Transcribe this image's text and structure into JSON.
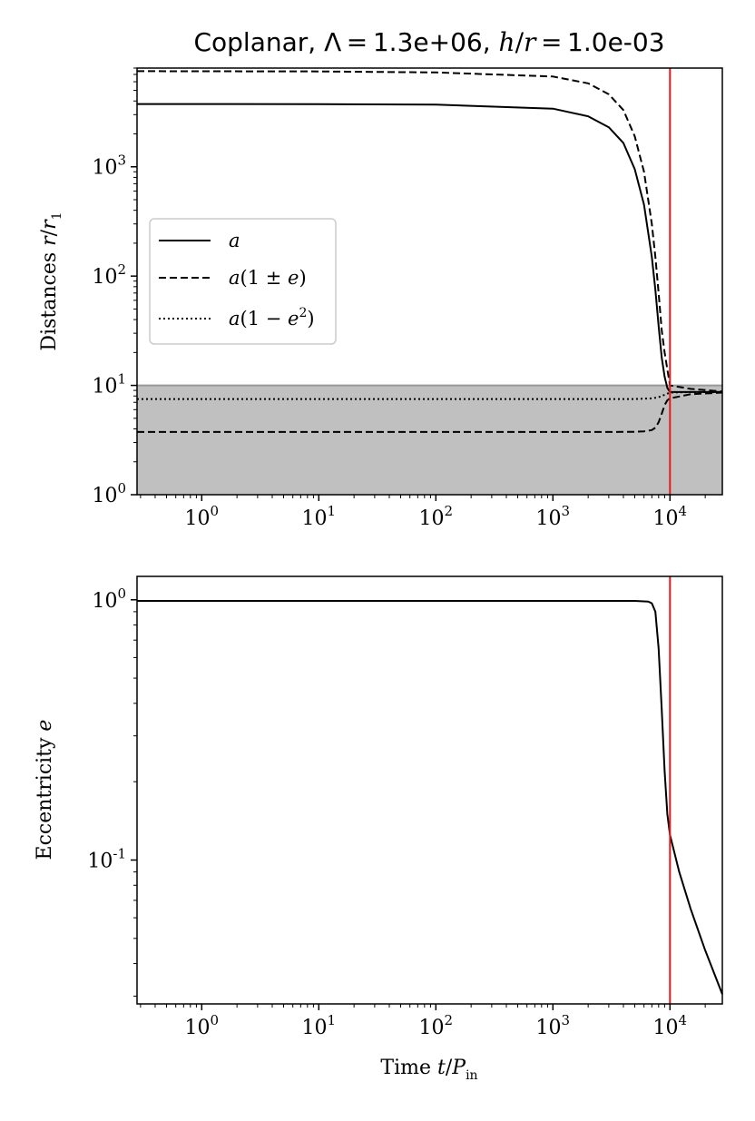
{
  "figure": {
    "title": {
      "prefix": "Coplanar, Λ = 1.3e+06, ",
      "h": "h",
      "slash": "/",
      "r": "r",
      "suffix": " = 1.0e-03"
    },
    "xlabel": {
      "text": "Time ",
      "var": "t",
      "slash": "/",
      "P": "P",
      "sub": "in"
    },
    "top_ylabel": {
      "text": "Distances ",
      "var": "r",
      "slash": "/",
      "r": "r",
      "sub": "1"
    },
    "bottom_ylabel": {
      "text": "Eccentricity ",
      "var": "e"
    },
    "colors": {
      "line": "#000000",
      "marker": "#e41a1c",
      "shade": "#c0c0c0",
      "legend_edge": "#cccccc"
    }
  },
  "chart_data": [
    {
      "type": "line",
      "panel": "top",
      "xscale": "log",
      "yscale": "log",
      "xlim": [
        0.28,
        28000
      ],
      "ylim": [
        1,
        8000
      ],
      "xticks": [
        {
          "value": 1,
          "base": "10",
          "exp": "0"
        },
        {
          "value": 10,
          "base": "10",
          "exp": "1"
        },
        {
          "value": 100,
          "base": "10",
          "exp": "2"
        },
        {
          "value": 1000,
          "base": "10",
          "exp": "3"
        },
        {
          "value": 10000,
          "base": "10",
          "exp": "4"
        }
      ],
      "yticks": [
        {
          "value": 1,
          "base": "10",
          "exp": "0"
        },
        {
          "value": 10,
          "base": "10",
          "exp": "1"
        },
        {
          "value": 100,
          "base": "10",
          "exp": "2"
        },
        {
          "value": 1000,
          "base": "10",
          "exp": "3"
        }
      ],
      "shaded_region_y": [
        1,
        10
      ],
      "vline_x": 10000,
      "legend": {
        "position": "center-left"
      },
      "series": [
        {
          "name": "a",
          "style": "solid",
          "x": [
            0.28,
            1,
            10,
            100,
            1000,
            2000,
            3000,
            4000,
            5000,
            6000,
            7000,
            7500,
            8000,
            8500,
            9000,
            9500,
            10000,
            15000,
            28000
          ],
          "y": [
            3750,
            3750,
            3745,
            3700,
            3400,
            2900,
            2300,
            1650,
            950,
            450,
            150,
            75,
            35,
            18,
            12,
            9.5,
            8.7,
            8.7,
            8.7
          ]
        },
        {
          "name": "a(1 ± e)",
          "style": "dashed",
          "x": [
            0.28,
            1,
            10,
            100,
            1000,
            2000,
            3000,
            4000,
            5000,
            6000,
            7000,
            7500,
            8000,
            8500,
            9000,
            9500,
            10000,
            15000,
            28000
          ],
          "y": [
            7500,
            7480,
            7450,
            7300,
            6700,
            5800,
            4600,
            3300,
            1900,
            900,
            300,
            150,
            70,
            32,
            20,
            14,
            10,
            9.3,
            8.8
          ]
        },
        {
          "name": "",
          "style": "dashed",
          "x": [
            0.28,
            1,
            10,
            100,
            1000,
            3000,
            5000,
            6000,
            7000,
            7500,
            8000,
            8500,
            9000,
            9500,
            10000,
            15000,
            28000
          ],
          "y": [
            3.75,
            3.75,
            3.75,
            3.75,
            3.75,
            3.75,
            3.76,
            3.8,
            3.9,
            4.1,
            4.6,
            5.5,
            6.6,
            7.3,
            7.6,
            8.3,
            8.6
          ]
        },
        {
          "name": "a(1 − e²)",
          "style": "dotted",
          "x": [
            0.28,
            10,
            1000,
            5000,
            7000,
            8000,
            9000,
            10000,
            15000,
            28000
          ],
          "y": [
            7.5,
            7.5,
            7.5,
            7.5,
            7.6,
            7.8,
            8.2,
            8.6,
            8.7,
            8.7
          ]
        }
      ]
    },
    {
      "type": "line",
      "panel": "bottom",
      "xscale": "log",
      "yscale": "log",
      "xlim": [
        0.28,
        28000
      ],
      "ylim": [
        0.028,
        1.23
      ],
      "xticks": [
        {
          "value": 1,
          "base": "10",
          "exp": "0"
        },
        {
          "value": 10,
          "base": "10",
          "exp": "1"
        },
        {
          "value": 100,
          "base": "10",
          "exp": "2"
        },
        {
          "value": 1000,
          "base": "10",
          "exp": "3"
        },
        {
          "value": 10000,
          "base": "10",
          "exp": "4"
        }
      ],
      "yticks": [
        {
          "value": 0.1,
          "base": "10",
          "exp": "-1"
        },
        {
          "value": 1,
          "base": "10",
          "exp": "0"
        }
      ],
      "vline_x": 10000,
      "series": [
        {
          "name": "e",
          "style": "solid",
          "x": [
            0.28,
            1,
            10,
            100,
            1000,
            5000,
            6500,
            7000,
            7500,
            8000,
            8500,
            9000,
            9500,
            10000,
            12000,
            15000,
            20000,
            28000
          ],
          "y": [
            0.99,
            0.99,
            0.99,
            0.99,
            0.99,
            0.99,
            0.985,
            0.97,
            0.9,
            0.65,
            0.38,
            0.22,
            0.15,
            0.125,
            0.09,
            0.065,
            0.045,
            0.0305
          ]
        }
      ]
    }
  ]
}
